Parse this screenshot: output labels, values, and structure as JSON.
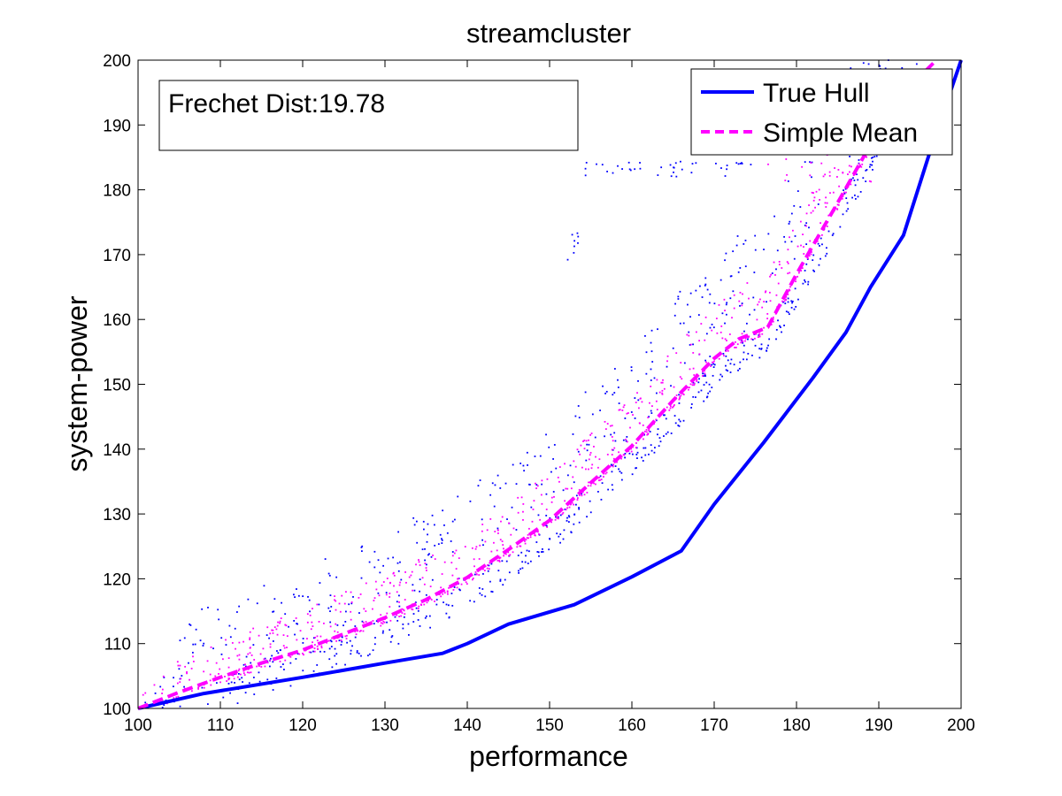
{
  "chart_data": {
    "type": "scatter",
    "title": "streamcluster",
    "xlabel": "performance",
    "ylabel": "system-power",
    "xlim": [
      100,
      200
    ],
    "ylim": [
      100,
      200
    ],
    "xticks": [
      100,
      110,
      120,
      130,
      140,
      150,
      160,
      170,
      180,
      190,
      200
    ],
    "yticks": [
      100,
      110,
      120,
      130,
      140,
      150,
      160,
      170,
      180,
      190,
      200
    ],
    "grid": false,
    "legend_position": "top-right",
    "annotation": "Frechet Dist:19.78",
    "series": [
      {
        "name": "True Hull",
        "kind": "line",
        "style": "solid",
        "color": "#0000ff",
        "x": [
          100,
          108,
          120,
          130,
          137,
          140,
          145,
          153,
          160,
          166,
          170,
          176,
          182,
          186,
          189,
          193,
          196,
          200
        ],
        "y": [
          100,
          102.3,
          104.8,
          107,
          108.5,
          110,
          113,
          116,
          120.3,
          124.3,
          131.5,
          141,
          151,
          158,
          165,
          173,
          185,
          200
        ]
      },
      {
        "name": "Simple Mean",
        "kind": "line",
        "style": "dashed",
        "color": "#ff00ff",
        "x": [
          100,
          105,
          110,
          115,
          120,
          125,
          130,
          135,
          140,
          145,
          150,
          155,
          160,
          165,
          170,
          173,
          176.5,
          180,
          185,
          189,
          193,
          197
        ],
        "y": [
          100,
          102.5,
          104.8,
          107,
          109,
          111.5,
          114,
          116.8,
          120.2,
          124.5,
          129,
          134.8,
          140.5,
          147.5,
          154,
          157,
          158.8,
          167,
          178,
          187,
          195,
          200
        ]
      },
      {
        "name": "",
        "kind": "scatter",
        "color": "#0000ff",
        "count": 900,
        "spread_below": 5,
        "spread_above": 14,
        "x_range": [
          100,
          195
        ],
        "clusters": [
          {
            "x": [
              154,
              175
            ],
            "y": [
              182,
              184.5
            ],
            "n": 40
          },
          {
            "x": [
              152,
              154
            ],
            "y": [
              168,
              178
            ],
            "n": 8
          }
        ]
      },
      {
        "name": "",
        "kind": "scatter",
        "color": "#ff00ff",
        "count": 900,
        "spread_below": 1,
        "spread_above": 7,
        "x_range": [
          100,
          192
        ],
        "clusters": [
          {
            "x": [
              176,
              190
            ],
            "y": [
              181,
              188
            ],
            "n": 25
          }
        ]
      }
    ]
  }
}
